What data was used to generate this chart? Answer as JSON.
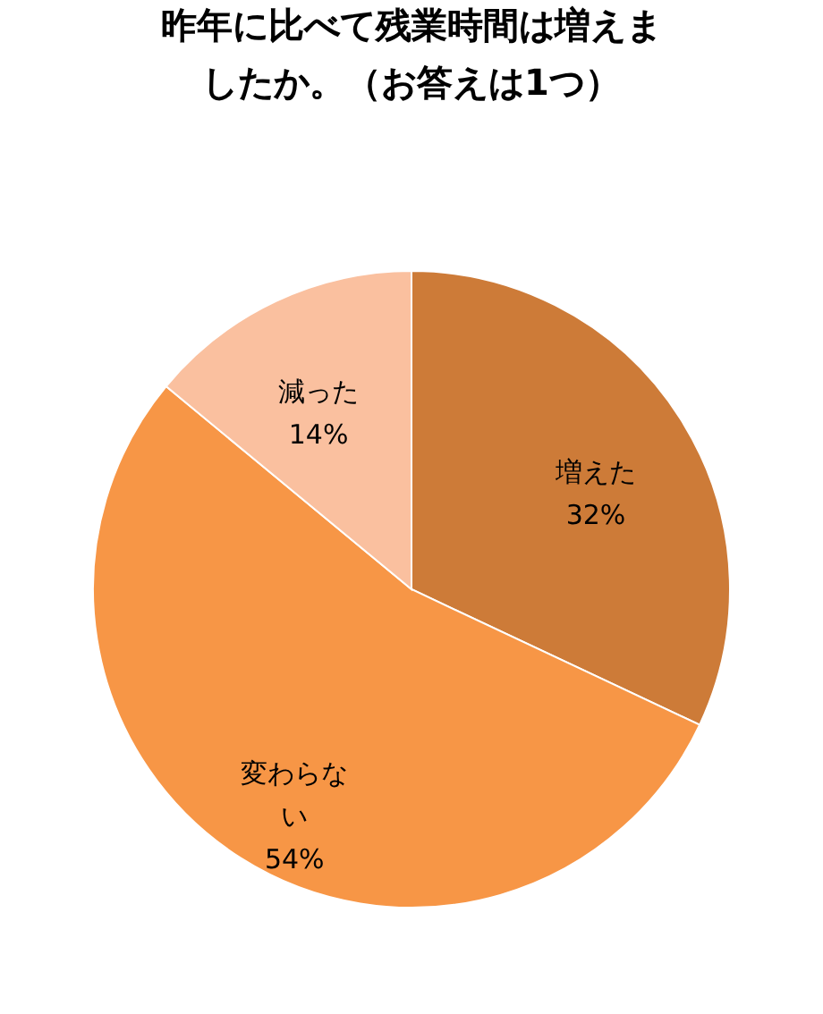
{
  "chart_data": {
    "type": "pie",
    "title": "昨年に比べて残業時間は増えましたか。（お答えは1つ）",
    "categories": [
      "増えた",
      "変わらない",
      "減った"
    ],
    "values": [
      32,
      54,
      14
    ],
    "value_labels": [
      "32%",
      "54%",
      "14%"
    ],
    "colors": [
      "#cd7b38",
      "#f79646",
      "#fac09f"
    ],
    "legend": false
  }
}
